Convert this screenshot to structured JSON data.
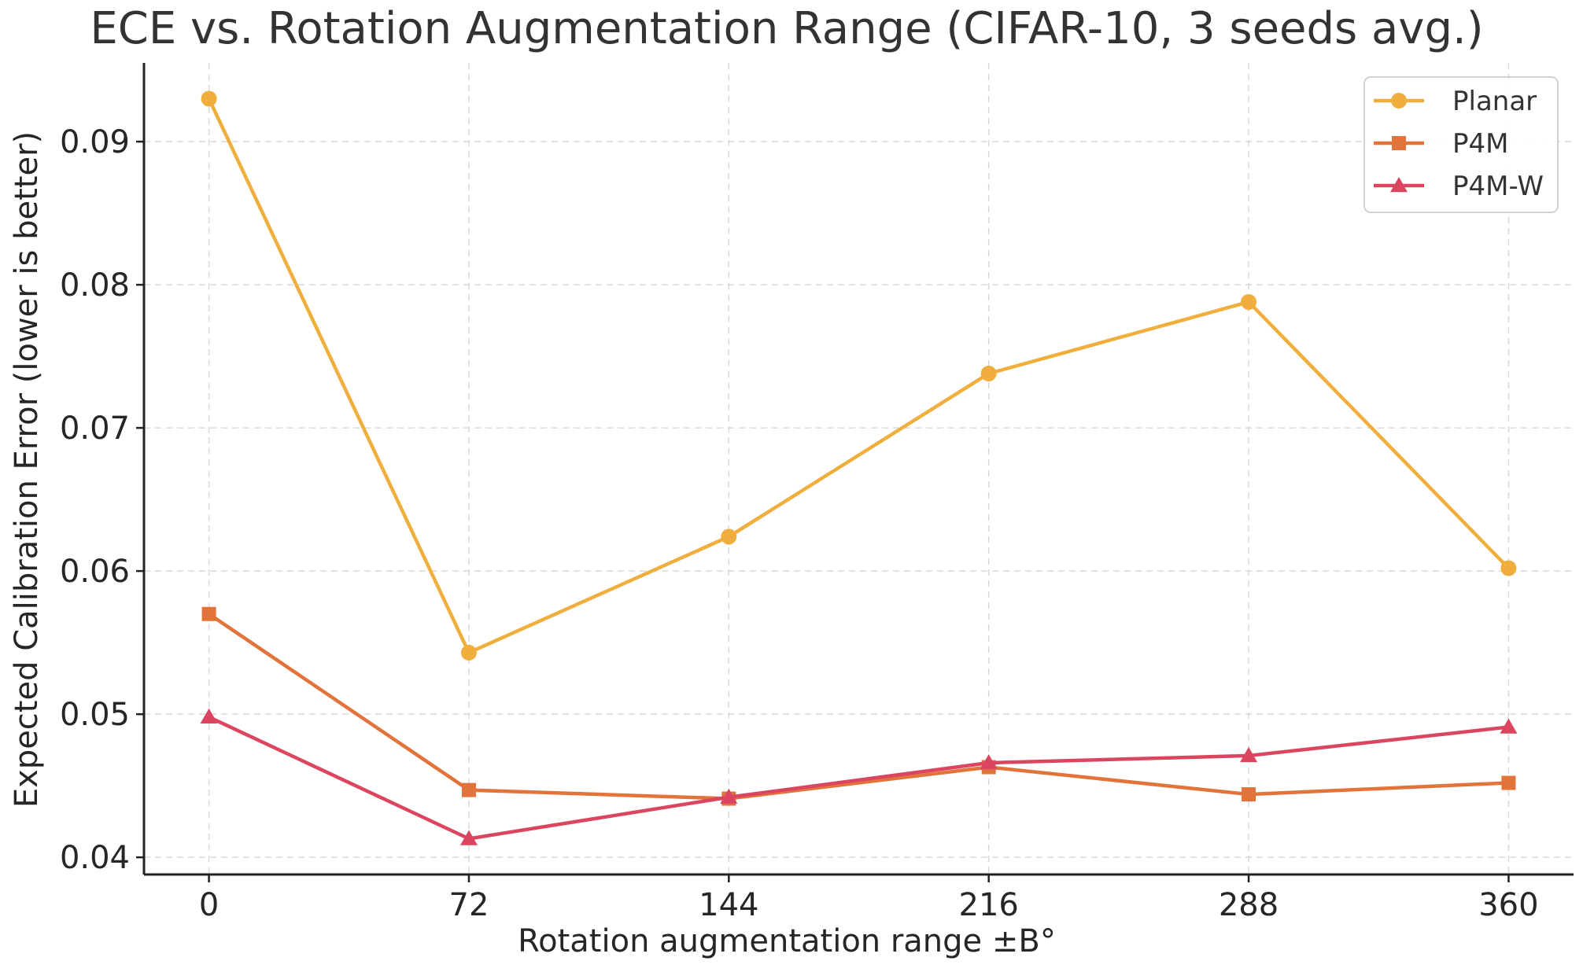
{
  "chart_data": {
    "type": "line",
    "title": "ECE vs. Rotation Augmentation Range (CIFAR-10, 3 seeds avg.)",
    "xlabel": "Rotation augmentation range ±B°",
    "ylabel": "Expected Calibration Error (lower is better)",
    "x": [
      0,
      72,
      144,
      216,
      288,
      360
    ],
    "xticks": [
      "0",
      "72",
      "144",
      "216",
      "288",
      "360"
    ],
    "yticks": [
      "0.04",
      "0.05",
      "0.06",
      "0.07",
      "0.08",
      "0.09"
    ],
    "ytick_values": [
      0.04,
      0.05,
      0.06,
      0.07,
      0.08,
      0.09
    ],
    "xlim": [
      -18,
      378
    ],
    "ylim": [
      0.0388,
      0.0955
    ],
    "grid": true,
    "legend_position": "top-right",
    "series": [
      {
        "name": "Planar",
        "color": "#F0AE3C",
        "marker": "circle",
        "values": [
          0.093,
          0.0543,
          0.0624,
          0.0738,
          0.0788,
          0.0602
        ]
      },
      {
        "name": "P4M",
        "color": "#E2733A",
        "marker": "square",
        "values": [
          0.057,
          0.0447,
          0.0441,
          0.0463,
          0.0444,
          0.0452
        ]
      },
      {
        "name": "P4M-W",
        "color": "#DC4560",
        "marker": "triangle",
        "values": [
          0.0498,
          0.0413,
          0.0442,
          0.0466,
          0.0471,
          0.0491
        ]
      }
    ]
  }
}
